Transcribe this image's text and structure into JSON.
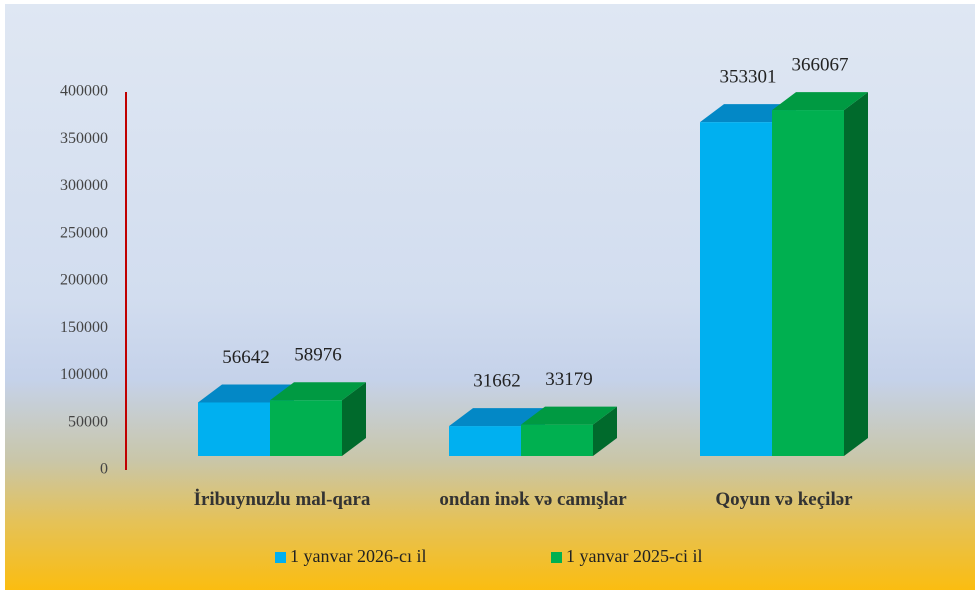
{
  "chart_data": {
    "type": "bar3d",
    "categories": [
      "İribuynuzlu mal-qara",
      "ondan inək və camışlar",
      "Qoyun və keçilər"
    ],
    "series": [
      {
        "name": "1 yanvar 2026-cı il",
        "color": "#00b0f0",
        "values": [
          56642,
          31662,
          353301
        ]
      },
      {
        "name": "1 yanvar 2025-ci il",
        "color": "#00b050",
        "values": [
          58976,
          33179,
          366067
        ]
      }
    ],
    "ylim": [
      0,
      400000
    ],
    "yticks": [
      0,
      50000,
      100000,
      150000,
      200000,
      250000,
      300000,
      350000,
      400000
    ],
    "legend": "bottom"
  }
}
